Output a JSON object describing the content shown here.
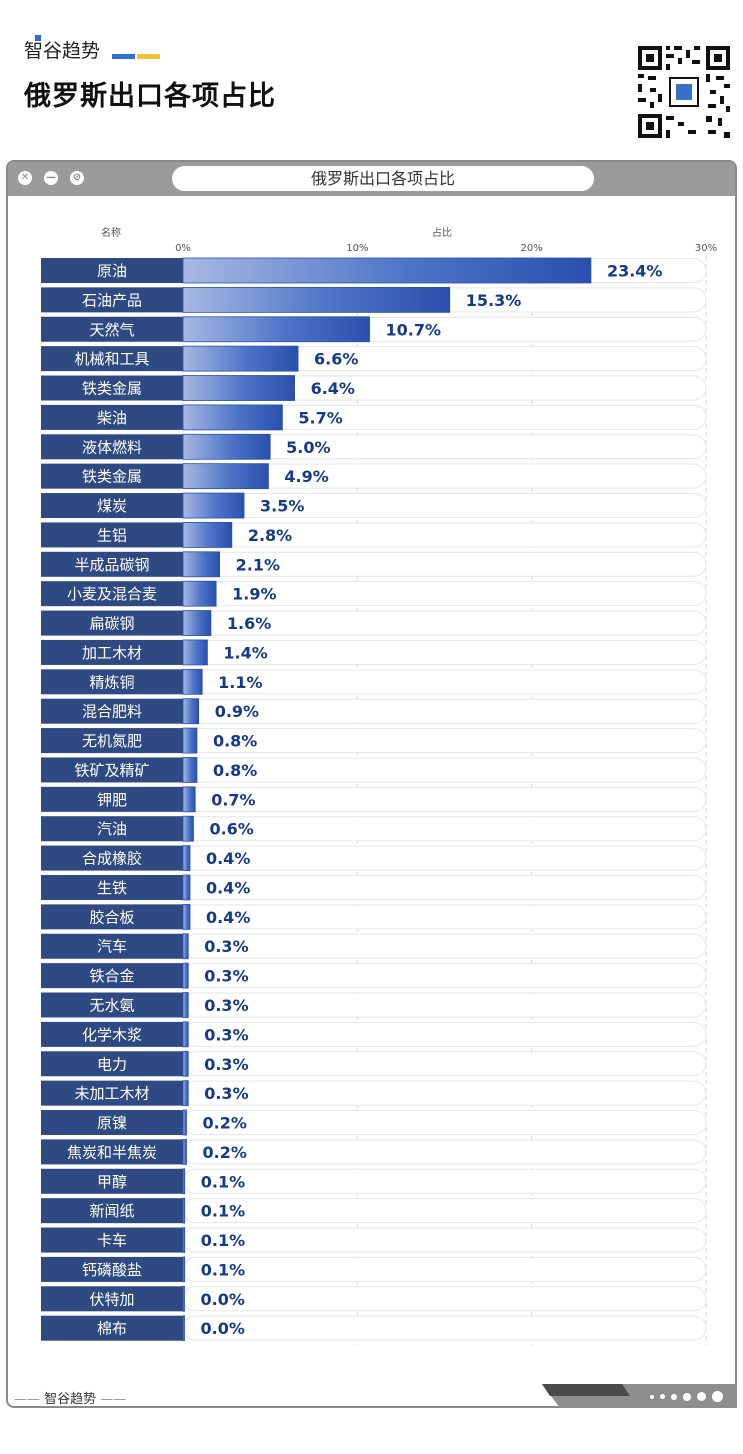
{
  "brand": "智谷趋势",
  "headline": "俄罗斯出口各项占比",
  "window": {
    "title": "俄罗斯出口各项占比"
  },
  "footer": {
    "brand": "智谷趋势"
  },
  "colors": {
    "label_bg": "#2f4a82",
    "bar_dark": "#2b55b3",
    "bar_light": "#9fb2e0",
    "value_text": "#143a8c"
  },
  "chart_data": {
    "type": "bar",
    "orientation": "horizontal",
    "title": "俄罗斯出口各项占比",
    "category_header": "名称",
    "value_header": "占比",
    "xlim": [
      0,
      30
    ],
    "ticks": [
      "0%",
      "10%",
      "20%",
      "30%"
    ],
    "tick_values": [
      0,
      10,
      20,
      30
    ],
    "grid": true,
    "categories": [
      "原油",
      "石油产品",
      "天然气",
      "机械和工具",
      "铁类金属",
      "柴油",
      "液体燃料",
      "铁类金属",
      "煤炭",
      "生铝",
      "半成品碳钢",
      "小麦及混合麦",
      "扁碳钢",
      "加工木材",
      "精炼铜",
      "混合肥料",
      "无机氮肥",
      "铁矿及精矿",
      "钾肥",
      "汽油",
      "合成橡胶",
      "生铁",
      "胶合板",
      "汽车",
      "铁合金",
      "无水氨",
      "化学木浆",
      "电力",
      "未加工木材",
      "原镍",
      "焦炭和半焦炭",
      "甲醇",
      "新闻纸",
      "卡车",
      "钙磷酸盐",
      "伏特加",
      "棉布"
    ],
    "values": [
      23.4,
      15.3,
      10.7,
      6.6,
      6.4,
      5.7,
      5.0,
      4.9,
      3.5,
      2.8,
      2.1,
      1.9,
      1.6,
      1.4,
      1.1,
      0.9,
      0.8,
      0.8,
      0.7,
      0.6,
      0.4,
      0.4,
      0.4,
      0.3,
      0.3,
      0.3,
      0.3,
      0.3,
      0.3,
      0.2,
      0.2,
      0.1,
      0.1,
      0.1,
      0.1,
      0.0,
      0.0
    ],
    "value_labels": [
      "23.4%",
      "15.3%",
      "10.7%",
      "6.6%",
      "6.4%",
      "5.7%",
      "5.0%",
      "4.9%",
      "3.5%",
      "2.8%",
      "2.1%",
      "1.9%",
      "1.6%",
      "1.4%",
      "1.1%",
      "0.9%",
      "0.8%",
      "0.8%",
      "0.7%",
      "0.6%",
      "0.4%",
      "0.4%",
      "0.4%",
      "0.3%",
      "0.3%",
      "0.3%",
      "0.3%",
      "0.3%",
      "0.3%",
      "0.2%",
      "0.2%",
      "0.1%",
      "0.1%",
      "0.1%",
      "0.1%",
      "0.0%",
      "0.0%"
    ]
  }
}
